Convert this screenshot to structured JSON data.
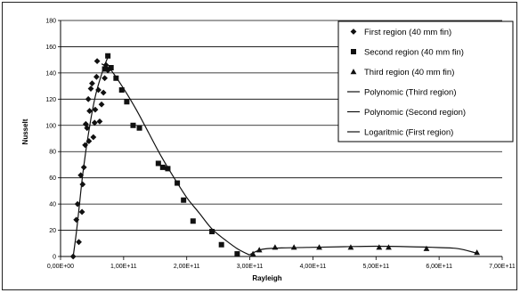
{
  "chart_data": {
    "type": "scatter",
    "xlabel": "Rayleigh",
    "ylabel": "Nusselt",
    "xlim": [
      0,
      700000000000
    ],
    "ylim": [
      0,
      180
    ],
    "x_ticks": [
      0,
      100000000000,
      200000000000,
      300000000000,
      400000000000,
      500000000000,
      600000000000,
      700000000000
    ],
    "x_tick_labels": [
      "0,00E+00",
      "1,00E+11",
      "2,00E+11",
      "3,00E+11",
      "4,00E+11",
      "5,00E+11",
      "6,00E+11",
      "7,00E+11"
    ],
    "y_ticks": [
      0,
      20,
      40,
      60,
      80,
      100,
      120,
      140,
      160,
      180
    ],
    "y_tick_labels": [
      "0",
      "20",
      "40",
      "60",
      "80",
      "100",
      "120",
      "140",
      "160",
      "180"
    ],
    "grid": "horizontal",
    "legend_position": "right",
    "series": [
      {
        "name": "First region (40 mm fin)",
        "marker": "diamond",
        "color": "#111111",
        "x": [
          20000000000,
          25000000000,
          27000000000,
          29000000000,
          32000000000,
          34000000000,
          35000000000,
          37000000000,
          39000000000,
          40000000000,
          42000000000,
          44000000000,
          45000000000,
          46000000000,
          48000000000,
          50000000000,
          52000000000,
          54000000000,
          55000000000,
          57000000000,
          58000000000,
          60000000000,
          62000000000,
          65000000000,
          68000000000,
          70000000000,
          72000000000,
          75000000000
        ],
        "y": [
          0,
          28,
          40,
          11,
          62,
          34,
          55,
          68,
          85,
          101,
          98,
          120,
          88,
          111,
          128,
          132,
          91,
          102,
          112,
          137,
          149,
          127,
          103,
          116,
          125,
          136,
          146,
          142
        ]
      },
      {
        "name": "Second region (40 mm fin)",
        "marker": "square",
        "color": "#111111",
        "x": [
          70000000000,
          75000000000,
          80000000000,
          88000000000,
          97000000000,
          105000000000,
          115000000000,
          125000000000,
          155000000000,
          162000000000,
          170000000000,
          185000000000,
          195000000000,
          210000000000,
          240000000000,
          255000000000,
          280000000000
        ],
        "y": [
          143,
          153,
          144,
          136,
          127,
          118,
          100,
          98,
          71,
          68,
          67,
          56,
          43,
          27,
          19,
          9,
          2
        ]
      },
      {
        "name": "Third region (40 mm fin)",
        "marker": "triangle",
        "color": "#111111",
        "x": [
          305000000000,
          315000000000,
          340000000000,
          370000000000,
          410000000000,
          460000000000,
          505000000000,
          520000000000,
          580000000000,
          660000000000
        ],
        "y": [
          2,
          5,
          7,
          7,
          7,
          7,
          7,
          7,
          6,
          3
        ]
      }
    ],
    "trendlines": [
      {
        "name": "Polynomic (Third region)",
        "color": "#111111",
        "x": [
          300000000000,
          320000000000,
          350000000000,
          400000000000,
          450000000000,
          500000000000,
          550000000000,
          600000000000,
          630000000000,
          660000000000
        ],
        "y": [
          1.5,
          5.5,
          6.5,
          7,
          7.5,
          7.8,
          7.5,
          6.8,
          6,
          2.5
        ]
      },
      {
        "name": "Polynomic (Second region)",
        "color": "#111111",
        "x": [
          65000000000,
          80000000000,
          100000000000,
          120000000000,
          140000000000,
          160000000000,
          180000000000,
          200000000000,
          220000000000,
          240000000000,
          260000000000,
          280000000000,
          300000000000
        ],
        "y": [
          147,
          142,
          128,
          112,
          94,
          76,
          60,
          45,
          33,
          21,
          13,
          6,
          1
        ]
      },
      {
        "name": "Logaritmic (First region)",
        "color": "#111111",
        "x": [
          20000000000,
          25000000000,
          30000000000,
          35000000000,
          40000000000,
          45000000000,
          50000000000,
          55000000000,
          60000000000,
          65000000000,
          70000000000,
          75000000000
        ],
        "y": [
          0,
          18,
          40,
          62,
          80,
          96,
          110,
          122,
          131,
          139,
          146,
          152
        ]
      }
    ],
    "legend": [
      {
        "label": "First region (40 mm fin)",
        "marker": "diamond"
      },
      {
        "label": "Second region (40 mm fin)",
        "marker": "square"
      },
      {
        "label": "Third region (40 mm fin)",
        "marker": "triangle"
      },
      {
        "label": "Polynomic (Third region)",
        "marker": "line"
      },
      {
        "label": "Polynomic (Second region)",
        "marker": "line"
      },
      {
        "label": "Logaritmic (First region)",
        "marker": "line"
      }
    ]
  }
}
